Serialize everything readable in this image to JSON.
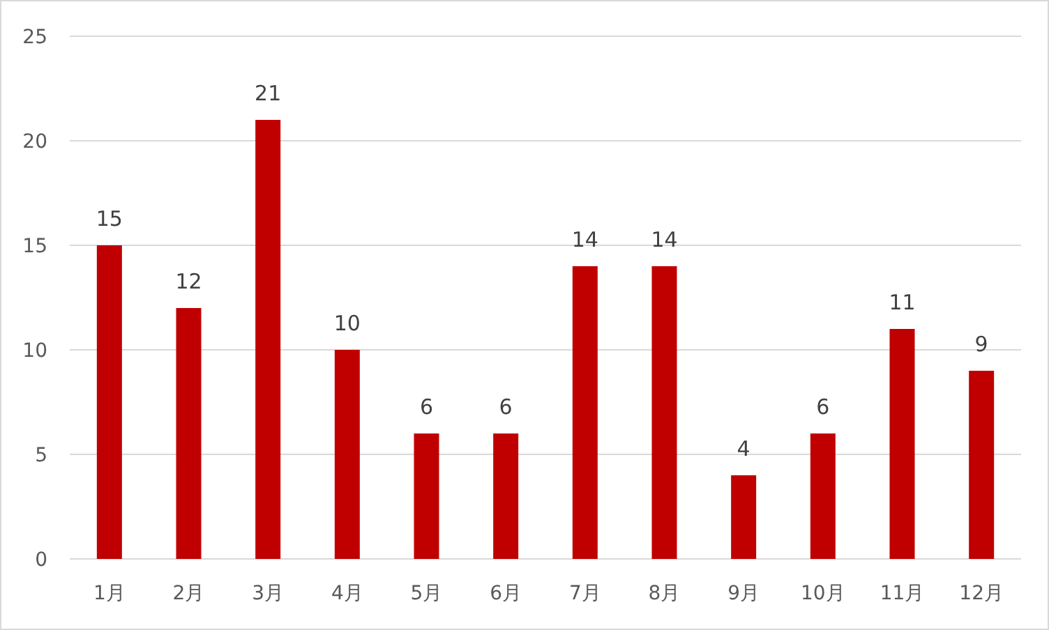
{
  "chart_data": {
    "type": "bar",
    "categories": [
      "1月",
      "2月",
      "3月",
      "4月",
      "5月",
      "6月",
      "7月",
      "8月",
      "9月",
      "10月",
      "11月",
      "12月"
    ],
    "values": [
      15,
      12,
      21,
      10,
      6,
      6,
      14,
      14,
      4,
      6,
      11,
      9
    ],
    "color": "#c00000",
    "ylim": [
      0,
      25
    ],
    "yticks": [
      0,
      5,
      10,
      15,
      20,
      25
    ],
    "grid": "y",
    "data_labels": true
  }
}
